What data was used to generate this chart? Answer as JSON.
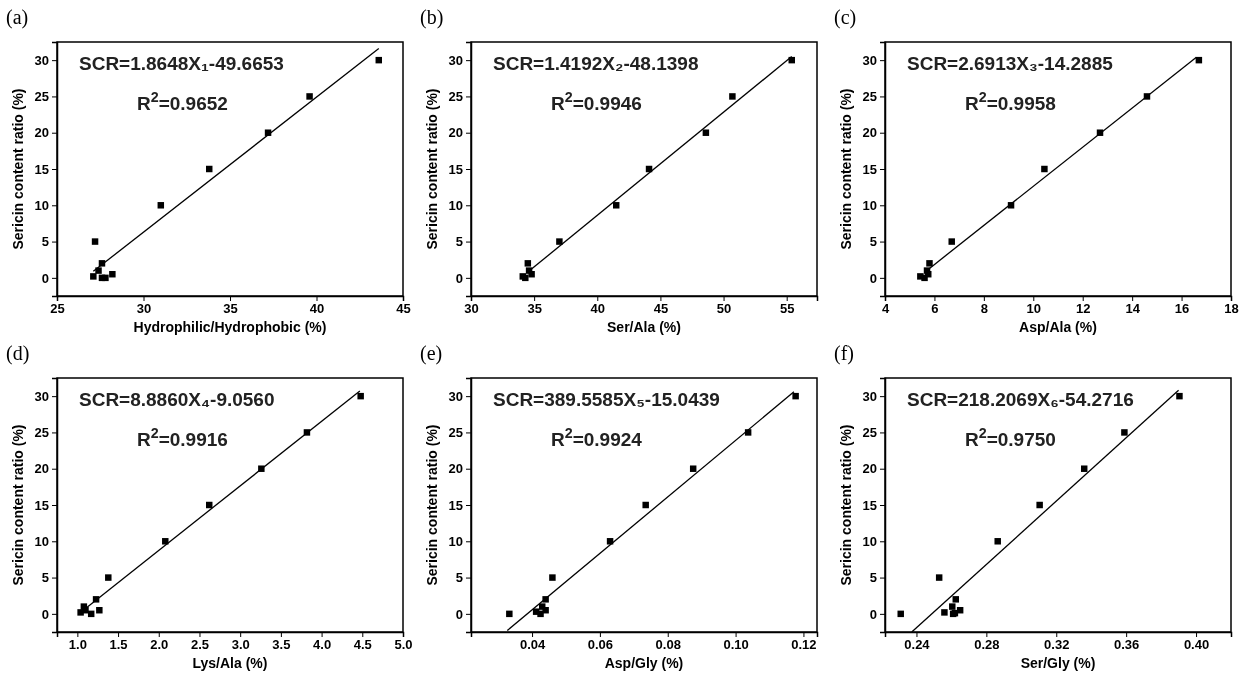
{
  "chart_data": [
    {
      "type": "scatter",
      "title": "(a)",
      "xlabel": "Hydrophilic/Hydrophobic (%)",
      "ylabel": "Sericin content ratio (%)",
      "xlim": [
        25,
        45
      ],
      "xticks": [
        25,
        30,
        35,
        40,
        45
      ],
      "ylim": [
        -2.5,
        32.5
      ],
      "yticks": [
        0,
        5,
        10,
        15,
        20,
        25,
        30
      ],
      "annotations": [
        "SCR=1.8648X₁-49.6653",
        "R$^{2}$=0.9652"
      ],
      "series": [
        {
          "marker": "square",
          "color": "#000000",
          "x": [
            27.1,
            27.4,
            27.6,
            27.6,
            27.8,
            28.2,
            27.2,
            31,
            33.8,
            37.2,
            39.6,
            43.6
          ],
          "values": [
            0.2,
            1,
            2,
            0,
            0,
            0.5,
            5,
            10,
            15,
            20,
            25,
            30
          ]
        },
        {
          "type": "line",
          "marker": "none",
          "color": "#000000",
          "x": [
            27.1,
            43.6
          ],
          "values": [
            0.9,
            31.6
          ]
        }
      ]
    },
    {
      "type": "scatter",
      "title": "(b)",
      "xlabel": "Ser/Ala (%)",
      "ylabel": "Sericin content ratio (%)",
      "xlim": [
        30,
        57.4
      ],
      "xticks": [
        30,
        35,
        40,
        45,
        50,
        55
      ],
      "ylim": [
        -2.5,
        32.5
      ],
      "yticks": [
        0,
        5,
        10,
        15,
        20,
        25,
        30
      ],
      "annotations": [
        "SCR=1.4192X₂-48.1398",
        "R$^{2}$=0.9946"
      ],
      "series": [
        {
          "marker": "square",
          "color": "#000000",
          "x": [
            34.1,
            34.3,
            34.5,
            34.6,
            34.8,
            37,
            41.5,
            44.1,
            48.6,
            50.7,
            55.4
          ],
          "values": [
            0.2,
            0,
            2,
            1,
            0.5,
            5,
            10,
            15,
            20,
            25,
            30
          ]
        },
        {
          "type": "line",
          "marker": "none",
          "color": "#000000",
          "x": [
            34.5,
            55.4
          ],
          "values": [
            0.8,
            30.5
          ]
        }
      ]
    },
    {
      "type": "scatter",
      "title": "(c)",
      "xlabel": "Asp/Ala (%)",
      "ylabel": "Sericin content ratio (%)",
      "xlim": [
        4,
        18
      ],
      "xticks": [
        4,
        6,
        8,
        10,
        12,
        14,
        16,
        18
      ],
      "ylim": [
        -2.5,
        32.5
      ],
      "yticks": [
        0,
        5,
        10,
        15,
        20,
        25,
        30
      ],
      "annotations": [
        "SCR=2.6913X₃-14.2885",
        "R$^{2}$=0.9958"
      ],
      "series": [
        {
          "marker": "square",
          "color": "#000000",
          "x": [
            5.43,
            5.6,
            5.7,
            5.75,
            5.8,
            6.7,
            9.1,
            10.45,
            12.7,
            14.6,
            16.7
          ],
          "values": [
            0.2,
            0,
            1,
            0.5,
            2,
            5,
            10,
            15,
            20,
            25,
            30
          ]
        },
        {
          "type": "line",
          "marker": "none",
          "color": "#000000",
          "x": [
            5.8,
            16.6
          ],
          "values": [
            1.3,
            30.4
          ]
        }
      ]
    },
    {
      "type": "scatter",
      "title": "(d)",
      "xlabel": "Lys/Ala (%)",
      "ylabel": "Sericin content ratio (%)",
      "xlim": [
        0.75,
        5
      ],
      "xticks": [
        {
          "value": 1,
          "label": "1.0"
        },
        1.5,
        {
          "value": 2,
          "label": "2.0"
        },
        2.5,
        {
          "value": 3,
          "label": "3.0"
        },
        3.5,
        {
          "value": 4,
          "label": "4.0"
        },
        4.5,
        {
          "value": 5,
          "label": "5.0"
        }
      ],
      "ylim": [
        -2.5,
        32.5
      ],
      "yticks": [
        0,
        5,
        10,
        15,
        20,
        25,
        30
      ],
      "annotations": [
        "SCR=8.8860X₄-9.0560",
        "R$^{2}$=0.9916"
      ],
      "series": [
        {
          "marker": "square",
          "color": "#000000",
          "x": [
            1.04,
            1.08,
            1.1,
            1.17,
            1.23,
            1.27,
            1.38,
            2.08,
            2.62,
            3.26,
            3.82,
            4.48
          ],
          "values": [
            0.2,
            1,
            0.5,
            0,
            2,
            0.5,
            5,
            10,
            15,
            20,
            25,
            30
          ]
        },
        {
          "type": "line",
          "marker": "none",
          "color": "#000000",
          "x": [
            1.05,
            4.47
          ],
          "values": [
            0.3,
            30.7
          ]
        }
      ]
    },
    {
      "type": "scatter",
      "title": "(e)",
      "xlabel": "Asp/Gly (%)",
      "ylabel": "Sericin content ratio (%)",
      "xlim": [
        0.022,
        0.124
      ],
      "xticks": [
        0.04,
        0.06,
        0.08,
        {
          "value": 0.1,
          "label": "0.10"
        },
        0.12
      ],
      "ylim": [
        -2.5,
        32.5
      ],
      "yticks": [
        0,
        5,
        10,
        15,
        20,
        25,
        30
      ],
      "annotations": [
        "SCR=389.5585X₅-15.0439",
        "R$^{2}$=0.9924"
      ],
      "series": [
        {
          "marker": "square",
          "color": "#000000",
          "x": [
            0.0333,
            0.0412,
            0.0425,
            0.043,
            0.044,
            0.044,
            0.046,
            0.063,
            0.0735,
            0.0875,
            0.1037,
            0.1177
          ],
          "values": [
            0,
            0.3,
            0,
            1,
            0.5,
            2,
            5,
            10,
            15,
            20,
            25,
            30
          ]
        },
        {
          "type": "line",
          "marker": "none",
          "color": "#000000",
          "x": [
            0.0327,
            0.1172
          ],
          "values": [
            -2.3,
            30.6
          ]
        }
      ]
    },
    {
      "type": "scatter",
      "title": "(f)",
      "xlabel": "Ser/Gly (%)",
      "ylabel": "Sericin content ratio (%)",
      "xlim": [
        0.222,
        0.42
      ],
      "xticks": [
        0.24,
        0.28,
        0.32,
        0.36,
        {
          "value": 0.4,
          "label": "0.40"
        }
      ],
      "ylim": [
        -2.5,
        32.5
      ],
      "yticks": [
        0,
        5,
        10,
        15,
        20,
        25,
        30
      ],
      "annotations": [
        "SCR=218.2069X₆-54.2716",
        "R$^{2}$=0.9750"
      ],
      "series": [
        {
          "marker": "square",
          "color": "#000000",
          "x": [
            0.231,
            0.253,
            0.256,
            0.2605,
            0.261,
            0.262,
            0.2625,
            0.265,
            0.2865,
            0.3105,
            0.336,
            0.359,
            0.3905
          ],
          "values": [
            0,
            5,
            0.2,
            1,
            0,
            0.1,
            2,
            0.5,
            10,
            15,
            20,
            25,
            30
          ]
        },
        {
          "type": "line",
          "marker": "none",
          "color": "#000000",
          "x": [
            0.2373,
            0.39
          ],
          "values": [
            -2.5,
            30.8
          ]
        }
      ]
    }
  ]
}
